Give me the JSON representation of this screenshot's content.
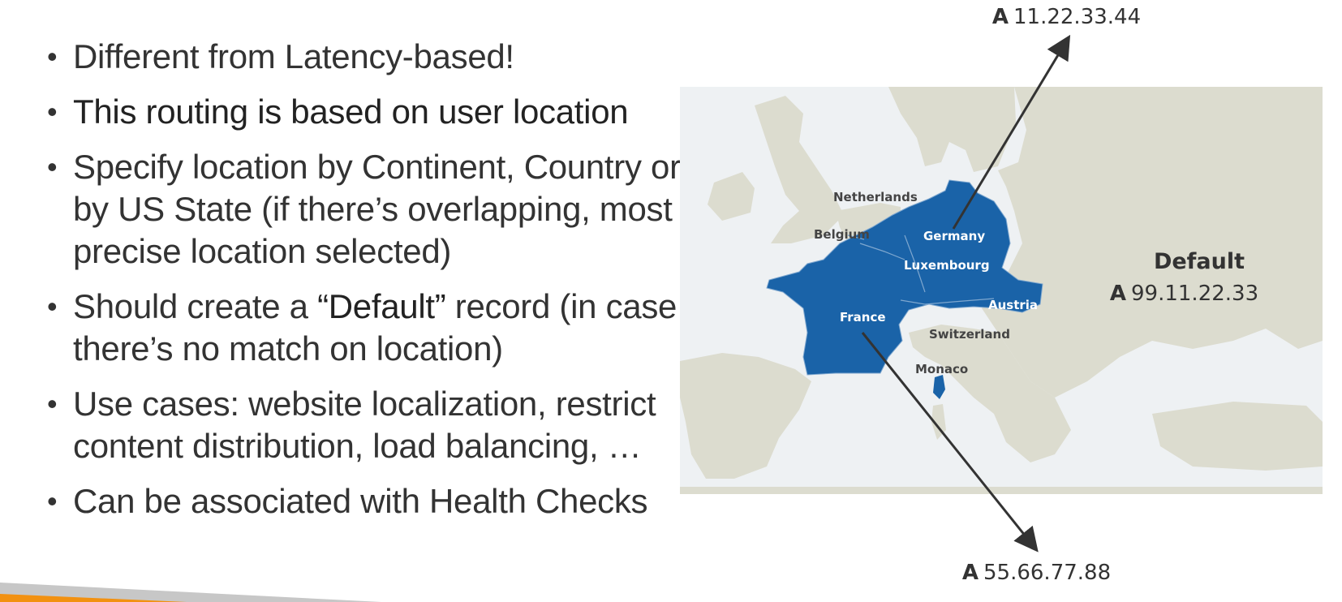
{
  "bullets": [
    {
      "pre": "Different from Latency-based!",
      "emph": "",
      "post": "",
      "strong": false
    },
    {
      "pre": "This routing is based on user location",
      "emph": "",
      "post": "",
      "strong": true
    },
    {
      "pre": "Specify location by Continent, Country or by US State (if there’s overlapping, most precise location selected)",
      "emph": "",
      "post": "",
      "strong": false
    },
    {
      "pre": "Should create a ",
      "emph": "“Default”",
      "post": " record (in case there’s no match on location)",
      "strong": false
    },
    {
      "pre": "Use cases: website localization, restrict content distribution, load balancing, …",
      "emph": "",
      "post": "",
      "strong": false
    },
    {
      "pre": "Can be associated with Health Checks",
      "emph": "",
      "post": "",
      "strong": false
    }
  ],
  "bullet_char": "•",
  "map": {
    "countries": {
      "netherlands": "Netherlands",
      "belgium": "Belgium",
      "germany": "Germany",
      "luxembourg": "Luxembourg",
      "france": "France",
      "austria": "Austria",
      "switzerland": "Switzerland",
      "monaco": "Monaco"
    },
    "records": {
      "top": {
        "type": "A",
        "ip": "11.22.33.44"
      },
      "bottom": {
        "type": "A",
        "ip": "55.66.77.88"
      },
      "default": {
        "title": "Default",
        "type": "A",
        "ip": "99.11.22.33"
      }
    }
  },
  "colors": {
    "highlight": "#1a63a8",
    "land": "#dcdccf",
    "sea": "#eef1f3",
    "arrow": "#333333",
    "ribbon_orange": "#f29111",
    "ribbon_gray": "#c7c7c7"
  }
}
